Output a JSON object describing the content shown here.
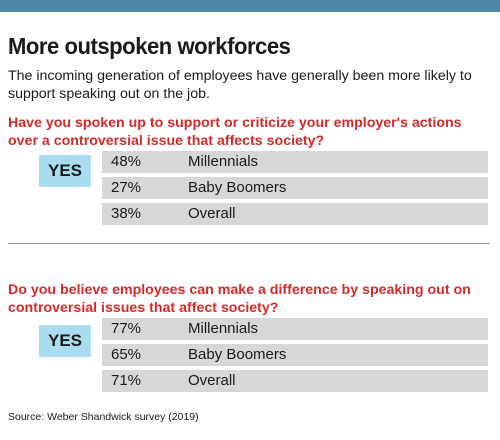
{
  "title": "More outspoken workforces",
  "subtitle": "The incoming generation of employees have generally been more likely to support speaking out on the job.",
  "colors": {
    "accent": "#4f87a6",
    "question": "#d22b2b",
    "yes_bg": "#a9dcf1",
    "bar_bg": "#d7d7d8"
  },
  "chart_data": [
    {
      "type": "table",
      "question": "Have you spoken up to support or criticize your employer's actions over a controversial issue that affects society?",
      "answer": "YES",
      "rows": [
        {
          "pct": "48%",
          "label": "Millennials",
          "value": 48
        },
        {
          "pct": "27%",
          "label": "Baby Boomers",
          "value": 27
        },
        {
          "pct": "38%",
          "label": "Overall",
          "value": 38
        }
      ]
    },
    {
      "type": "table",
      "question": "Do you believe employees can make a difference by speaking out on controversial issues that affect society?",
      "answer": "YES",
      "rows": [
        {
          "pct": "77%",
          "label": "Millennials",
          "value": 77
        },
        {
          "pct": "65%",
          "label": "Baby Boomers",
          "value": 65
        },
        {
          "pct": "71%",
          "label": "Overall",
          "value": 71
        }
      ]
    }
  ],
  "source": "Source: Weber Shandwick survey (2019)"
}
